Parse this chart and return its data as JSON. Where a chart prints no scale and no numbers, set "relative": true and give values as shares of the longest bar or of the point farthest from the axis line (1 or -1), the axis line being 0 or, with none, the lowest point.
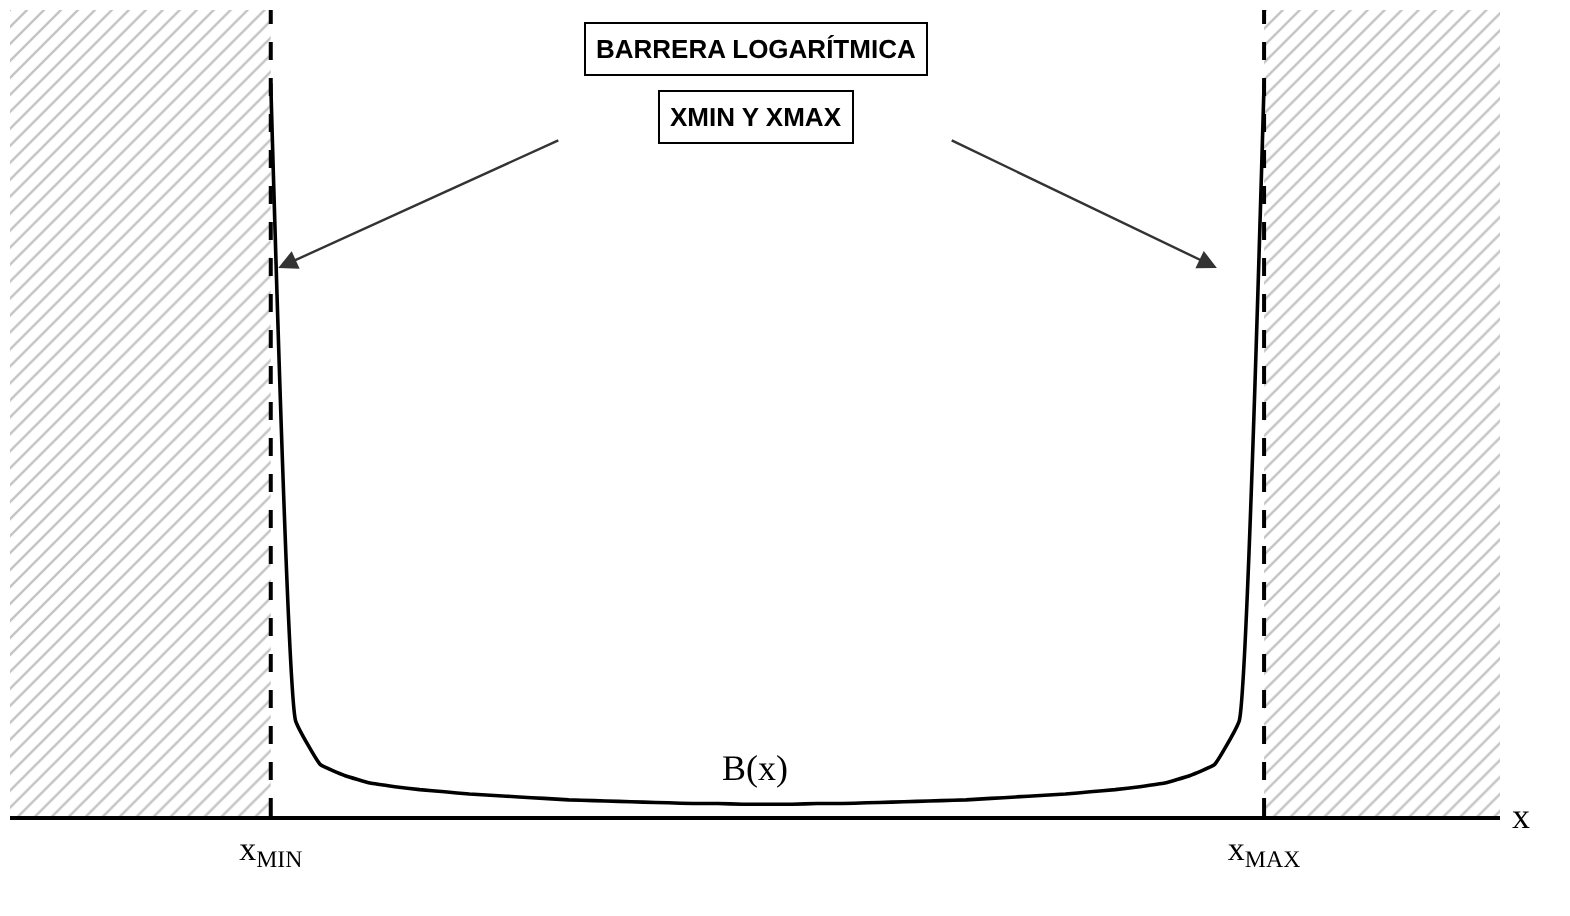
{
  "chart_data": {
    "type": "line",
    "relative": true,
    "xlabel": "x",
    "categories": [
      null,
      null,
      null,
      null,
      null,
      null,
      null,
      null,
      null,
      null,
      "x$_{MIN}$",
      null,
      null,
      null,
      null,
      null,
      null,
      null,
      null,
      null,
      null,
      null,
      null,
      null,
      null,
      null,
      null,
      null,
      null,
      null,
      null,
      null,
      null,
      null,
      null,
      null,
      null,
      null,
      null,
      null,
      null,
      null,
      null,
      null,
      null,
      null,
      null,
      null,
      null,
      null,
      "x$_{MAX}$",
      null,
      null,
      null,
      null,
      null,
      null,
      null,
      null,
      null
    ],
    "series": [
      {
        "color": "#000000",
        "values": [
          null,
          null,
          null,
          null,
          null,
          null,
          null,
          null,
          null,
          null,
          1.0,
          0.13,
          0.07,
          0.055,
          0.045,
          0.04,
          0.036,
          0.033,
          0.03,
          0.028,
          0.026,
          0.024,
          0.022,
          0.021,
          0.02,
          0.019,
          0.018,
          0.017,
          0.017,
          0.016,
          0.016,
          0.016,
          0.017,
          0.017,
          0.018,
          0.019,
          0.02,
          0.021,
          0.022,
          0.024,
          0.026,
          0.028,
          0.03,
          0.033,
          0.036,
          0.04,
          0.045,
          0.055,
          0.07,
          0.13,
          1.0,
          null,
          null,
          null,
          null,
          null,
          null,
          null,
          null,
          null
        ]
      }
    ],
    "ref_lines": [
      {
        "axis": "x",
        "value": "x$_{MIN}$",
        "color": "#000000",
        "line_style": "dashed"
      },
      {
        "axis": "x",
        "value": "x$_{MAX}$",
        "color": "#000000",
        "line_style": "dashed"
      }
    ],
    "annotations": [
      "BARRERA LOGARÍTMICA",
      "XMIN Y XMAX",
      {
        "text": "B(x)",
        "y": 0.016
      }
    ],
    "marker": "none",
    "line_style": "solid"
  }
}
